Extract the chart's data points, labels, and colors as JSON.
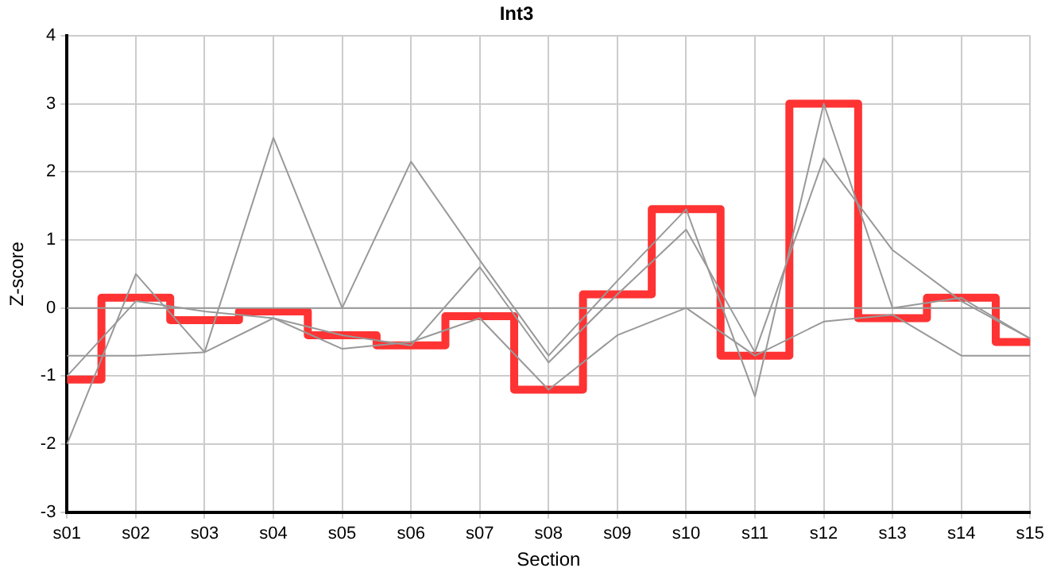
{
  "chart_data": {
    "type": "line",
    "title": "Int3",
    "xlabel": "Section",
    "ylabel": "Z-score",
    "categories": [
      "s01",
      "s02",
      "s03",
      "s04",
      "s05",
      "s06",
      "s07",
      "s08",
      "s09",
      "s10",
      "s11",
      "s12",
      "s13",
      "s14",
      "s15"
    ],
    "series": [
      {
        "color": "#999999",
        "values": [
          -2.0,
          0.5,
          -0.65,
          2.5,
          0.0,
          2.15,
          0.7,
          -0.7,
          0.4,
          1.45,
          -1.3,
          3.0,
          0.0,
          0.15,
          -0.45
        ]
      },
      {
        "color": "#999999",
        "values": [
          -1.0,
          0.1,
          -0.05,
          -0.15,
          -0.4,
          -0.55,
          0.6,
          -0.8,
          0.2,
          1.15,
          -0.65,
          2.2,
          0.85,
          0.1,
          -0.45
        ]
      },
      {
        "color": "#999999",
        "values": [
          -0.7,
          -0.7,
          -0.65,
          -0.15,
          -0.6,
          -0.5,
          -0.15,
          -1.2,
          -0.4,
          0.0,
          -0.7,
          -0.2,
          -0.1,
          -0.7,
          -0.7
        ]
      },
      {
        "color": "#999999",
        "values": [
          0,
          0,
          0,
          0,
          0,
          0,
          0,
          0,
          0,
          0,
          0,
          0,
          0,
          0,
          0
        ]
      },
      {
        "type": "step",
        "color": "#ff3333",
        "values": [
          -1.05,
          0.15,
          -0.18,
          -0.05,
          -0.4,
          -0.55,
          -0.12,
          -1.2,
          0.2,
          1.45,
          -0.7,
          3.0,
          -0.15,
          0.15,
          -0.5
        ]
      }
    ],
    "ylim": [
      -3,
      4
    ],
    "yticks": [
      -3,
      -2,
      -1,
      0,
      1,
      2,
      3,
      4
    ],
    "grid": true,
    "legend": false,
    "marker": "none"
  }
}
